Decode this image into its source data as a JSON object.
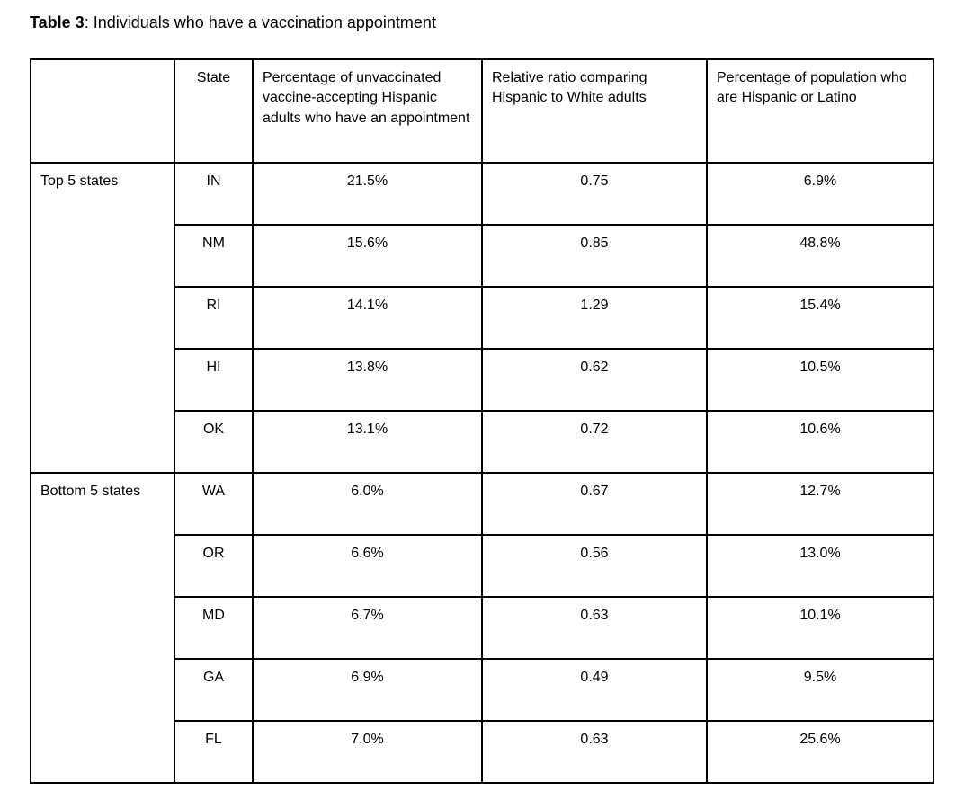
{
  "title": {
    "label": "Table 3",
    "text": ": Individuals who have a vaccination appointment"
  },
  "table": {
    "headers": {
      "group": "",
      "state": "State",
      "pct_appointment": "Percentage of unvaccinated vaccine-accepting Hispanic adults who have an appointment",
      "relative_ratio": "Relative ratio comparing Hispanic to White adults",
      "pct_population": "Percentage of population who are Hispanic or Latino"
    },
    "groups": [
      {
        "label": "Top 5 states",
        "rows": [
          {
            "state": "IN",
            "pct_appointment": "21.5%",
            "relative_ratio": "0.75",
            "pct_population": "6.9%"
          },
          {
            "state": "NM",
            "pct_appointment": "15.6%",
            "relative_ratio": "0.85",
            "pct_population": "48.8%"
          },
          {
            "state": "RI",
            "pct_appointment": "14.1%",
            "relative_ratio": "1.29",
            "pct_population": "15.4%"
          },
          {
            "state": "HI",
            "pct_appointment": "13.8%",
            "relative_ratio": "0.62",
            "pct_population": "10.5%"
          },
          {
            "state": "OK",
            "pct_appointment": "13.1%",
            "relative_ratio": "0.72",
            "pct_population": "10.6%"
          }
        ]
      },
      {
        "label": "Bottom 5 states",
        "rows": [
          {
            "state": "WA",
            "pct_appointment": "6.0%",
            "relative_ratio": "0.67",
            "pct_population": "12.7%"
          },
          {
            "state": "OR",
            "pct_appointment": "6.6%",
            "relative_ratio": "0.56",
            "pct_population": "13.0%"
          },
          {
            "state": "MD",
            "pct_appointment": "6.7%",
            "relative_ratio": "0.63",
            "pct_population": "10.1%"
          },
          {
            "state": "GA",
            "pct_appointment": "6.9%",
            "relative_ratio": "0.49",
            "pct_population": "9.5%"
          },
          {
            "state": "FL",
            "pct_appointment": "7.0%",
            "relative_ratio": "0.63",
            "pct_population": "25.6%"
          }
        ]
      }
    ]
  },
  "colors": {
    "text": "#000000",
    "border": "#000000",
    "background": "#ffffff"
  }
}
